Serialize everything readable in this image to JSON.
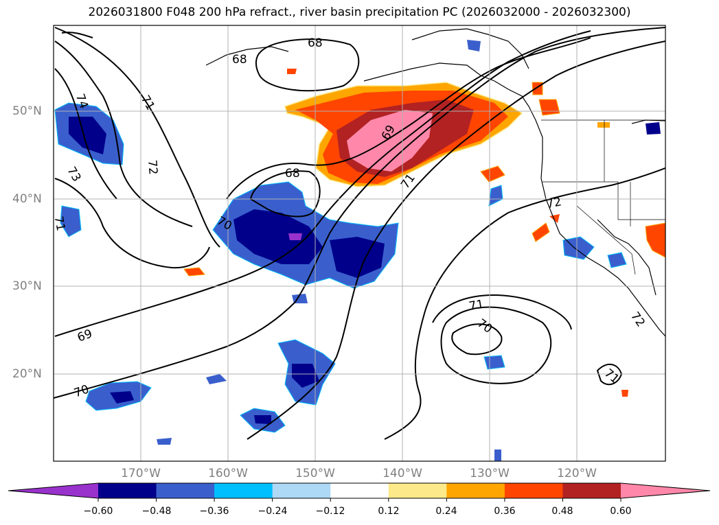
{
  "title": "2026031800 F048 200 hPa refract., river basin precipitation PC (2026032000 - 2026032300)",
  "lat_labels": [
    "50°N",
    "40°N",
    "30°N",
    "20°N"
  ],
  "lon_labels": [
    "170°W",
    "160°W",
    "150°W",
    "140°W",
    "130°W",
    "120°W"
  ],
  "contour_labels": [
    "68",
    "68",
    "68",
    "69",
    "69",
    "70",
    "70",
    "70",
    "71",
    "71",
    "71",
    "71",
    "72",
    "72",
    "72",
    "73",
    "74",
    "71"
  ],
  "colorbar": {
    "ticks": [
      "−0.60",
      "−0.48",
      "−0.36",
      "−0.24",
      "−0.12",
      "0.12",
      "0.24",
      "0.36",
      "0.48",
      "0.60"
    ],
    "colors": [
      "#9932cc",
      "#00008b",
      "#3a5fcd",
      "#00bfff",
      "#add8f6",
      "#ffffff",
      "#fce98a",
      "#ffa500",
      "#ff4500",
      "#b22222",
      "#ff88aa"
    ]
  }
}
